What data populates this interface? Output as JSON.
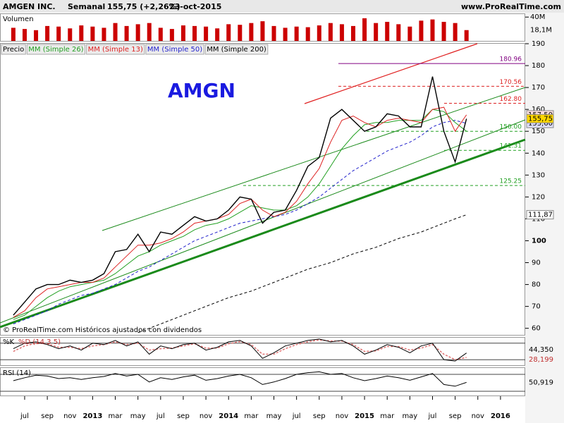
{
  "header": {
    "name": "AMGEN INC.",
    "period": "Semanal",
    "price": "155,75 (+2,26%)",
    "date": "23-oct-2015",
    "site": "www.ProRealTime.com"
  },
  "chart_data": {
    "type": "line",
    "title": "AMGN",
    "note": "© ProRealTime.com Históricos ajustados con dividendos",
    "price_label": "Precio",
    "x": [
      "2012-06",
      "2012-07",
      "2012-08",
      "2012-09",
      "2012-10",
      "2012-11",
      "2012-12",
      "2013-01",
      "2013-02",
      "2013-03",
      "2013-04",
      "2013-05",
      "2013-06",
      "2013-07",
      "2013-08",
      "2013-09",
      "2013-10",
      "2013-11",
      "2013-12",
      "2014-01",
      "2014-02",
      "2014-03",
      "2014-04",
      "2014-05",
      "2014-06",
      "2014-07",
      "2014-08",
      "2014-09",
      "2014-10",
      "2014-11",
      "2014-12",
      "2015-01",
      "2015-02",
      "2015-03",
      "2015-04",
      "2015-05",
      "2015-06",
      "2015-07",
      "2015-08",
      "2015-09",
      "2015-10"
    ],
    "series": [
      {
        "name": "MM (Simple 200)",
        "color": "#000000",
        "dash": true,
        "values": [
          null,
          null,
          null,
          null,
          null,
          null,
          null,
          null,
          null,
          null,
          null,
          58,
          60,
          62,
          64,
          66,
          68,
          70,
          72,
          74,
          75.5,
          77,
          79,
          81,
          83,
          85,
          87,
          88.5,
          90,
          92,
          94,
          95.5,
          97,
          99,
          101,
          102.5,
          104,
          106,
          108,
          110,
          111.87
        ]
      },
      {
        "name": "MM (Simple 50)",
        "color": "#2222cc",
        "dash": true,
        "values": [
          62,
          64,
          66,
          68,
          71,
          73,
          75,
          76,
          78,
          80,
          83,
          86,
          88,
          91,
          94,
          97,
          100,
          102,
          104,
          106,
          108,
          109,
          110,
          111,
          112,
          114,
          117,
          120,
          124,
          128,
          132,
          135,
          138,
          141,
          143,
          145,
          148,
          152,
          154,
          155,
          153.6
        ]
      },
      {
        "name": "MM (Simple 26)",
        "color": "#22a022",
        "dash": false,
        "values": [
          64,
          66,
          70,
          74,
          77,
          79,
          80,
          81,
          82,
          85,
          89,
          93,
          95,
          98,
          100,
          102,
          105,
          107,
          108,
          110,
          113,
          116,
          115,
          114,
          114,
          116,
          120,
          126,
          134,
          142,
          148,
          153,
          154,
          154,
          155,
          155,
          155,
          160,
          159,
          154,
          150
        ]
      },
      {
        "name": "MM (Simple 13)",
        "color": "#dd2222",
        "dash": false,
        "values": [
          65,
          68,
          74,
          78,
          79,
          80,
          81,
          81,
          83,
          88,
          93,
          98,
          98,
          99,
          101,
          104,
          108,
          109,
          110,
          112,
          117,
          119,
          114,
          111,
          113,
          118,
          126,
          133,
          145,
          155,
          157,
          154,
          152,
          155,
          156,
          155,
          154,
          160,
          161,
          150,
          157.5
        ]
      },
      {
        "name": "Precio",
        "color": "#000000",
        "dash": false,
        "values": [
          66,
          72,
          78,
          80,
          80,
          82,
          81,
          82,
          85,
          95,
          96,
          103,
          95,
          104,
          103,
          107,
          111,
          109,
          110,
          114,
          120,
          119,
          108,
          113,
          114,
          123,
          134,
          138,
          156,
          160,
          155,
          150,
          152,
          158,
          157,
          152,
          152,
          175,
          150,
          136,
          155.75
        ]
      }
    ],
    "legend": [
      "MM (Simple 26)",
      "MM (Simple 13)",
      "MM (Simple 50)",
      "MM (Simple 200)"
    ],
    "ylim": [
      57,
      190
    ],
    "yticks": [
      60,
      70,
      80,
      90,
      100,
      110,
      120,
      130,
      140,
      150,
      160,
      170,
      180,
      190
    ],
    "levels": [
      {
        "value": 180.96,
        "label": "180.96",
        "color": "#800080"
      },
      {
        "value": 170.56,
        "label": "170.56",
        "color": "#dd2222"
      },
      {
        "value": 162.8,
        "label": "162.80",
        "color": "#dd2222"
      },
      {
        "value": 150,
        "label": "150.00",
        "color": "#22a022"
      },
      {
        "value": 141.31,
        "label": "141.31",
        "color": "#22a022"
      },
      {
        "value": 125.25,
        "label": "125.25",
        "color": "#22a022"
      }
    ],
    "price_tags": [
      {
        "value": 157.5,
        "label": "157,50",
        "color": "#fde0e0"
      },
      {
        "value": 153.6,
        "label": "153,60",
        "color": "#e0e0fd"
      },
      {
        "value": 155.75,
        "label": "155,75",
        "color": "#ffd700"
      },
      {
        "value": 111.87,
        "label": "111,87",
        "color": "#ffffff"
      }
    ],
    "xticks": [
      {
        "value": "2012-07",
        "label": "jul"
      },
      {
        "value": "2012-09",
        "label": "sep"
      },
      {
        "value": "2012-11",
        "label": "nov"
      },
      {
        "value": "2013-01",
        "label": "2013"
      },
      {
        "value": "2013-03",
        "label": "mar"
      },
      {
        "value": "2013-05",
        "label": "may"
      },
      {
        "value": "2013-07",
        "label": "jul"
      },
      {
        "value": "2013-09",
        "label": "sep"
      },
      {
        "value": "2013-11",
        "label": "nov"
      },
      {
        "value": "2014-01",
        "label": "2014"
      },
      {
        "value": "2014-03",
        "label": "mar"
      },
      {
        "value": "2014-05",
        "label": "may"
      },
      {
        "value": "2014-07",
        "label": "jul"
      },
      {
        "value": "2014-09",
        "label": "sep"
      },
      {
        "value": "2014-11",
        "label": "nov"
      },
      {
        "value": "2015-01",
        "label": "2015"
      },
      {
        "value": "2015-03",
        "label": "mar"
      },
      {
        "value": "2015-05",
        "label": "may"
      },
      {
        "value": "2015-07",
        "label": "jul"
      },
      {
        "value": "2015-09",
        "label": "sep"
      },
      {
        "value": "2015-11",
        "label": "nov"
      },
      {
        "value": "2016-01",
        "label": "2016"
      }
    ],
    "volume": {
      "label": "Volumen",
      "color": "#cc0000",
      "unit_scale": "M",
      "values": [
        22,
        20,
        18,
        25,
        24,
        21,
        26,
        24,
        22,
        30,
        25,
        28,
        30,
        22,
        20,
        26,
        25,
        24,
        21,
        28,
        27,
        30,
        33,
        25,
        22,
        24,
        23,
        26,
        30,
        28,
        25,
        38,
        30,
        32,
        28,
        24,
        34,
        36,
        32,
        30,
        18.1
      ],
      "ylim": [
        0,
        45
      ],
      "yticks": [
        {
          "value": 40,
          "label": "40M"
        }
      ],
      "tag": {
        "value": 18.1,
        "label": "18,1M"
      }
    },
    "stochastic": {
      "label_k": "%K",
      "label_d": "%D (14 3 5)",
      "k": [
        60,
        80,
        85,
        75,
        60,
        70,
        55,
        80,
        75,
        90,
        70,
        85,
        40,
        70,
        60,
        75,
        80,
        55,
        65,
        85,
        90,
        70,
        25,
        45,
        70,
        80,
        90,
        95,
        85,
        90,
        70,
        40,
        55,
        75,
        65,
        45,
        70,
        80,
        20,
        15,
        44.35
      ],
      "d": [
        50,
        70,
        80,
        78,
        65,
        65,
        60,
        70,
        75,
        85,
        75,
        80,
        55,
        60,
        62,
        70,
        78,
        62,
        62,
        78,
        86,
        75,
        40,
        40,
        60,
        75,
        85,
        92,
        88,
        88,
        75,
        50,
        52,
        68,
        68,
        55,
        62,
        75,
        40,
        20,
        28.199
      ],
      "ylim": [
        0,
        100
      ],
      "lines": [
        80,
        20
      ],
      "tags": [
        {
          "value": 44.35,
          "label": "44,350"
        },
        {
          "value": 28.199,
          "label": "28,199"
        }
      ]
    },
    "rsi": {
      "label": "RSI (14)",
      "values": [
        55,
        62,
        68,
        66,
        60,
        62,
        58,
        62,
        65,
        72,
        66,
        70,
        52,
        62,
        58,
        64,
        68,
        56,
        60,
        66,
        70,
        62,
        46,
        52,
        60,
        70,
        74,
        76,
        70,
        72,
        62,
        55,
        60,
        66,
        62,
        56,
        64,
        72,
        46,
        42,
        50.919
      ],
      "ylim": [
        20,
        85
      ],
      "lines": [
        70,
        30
      ],
      "tag": {
        "value": 50.919,
        "label": "50,919"
      }
    }
  }
}
